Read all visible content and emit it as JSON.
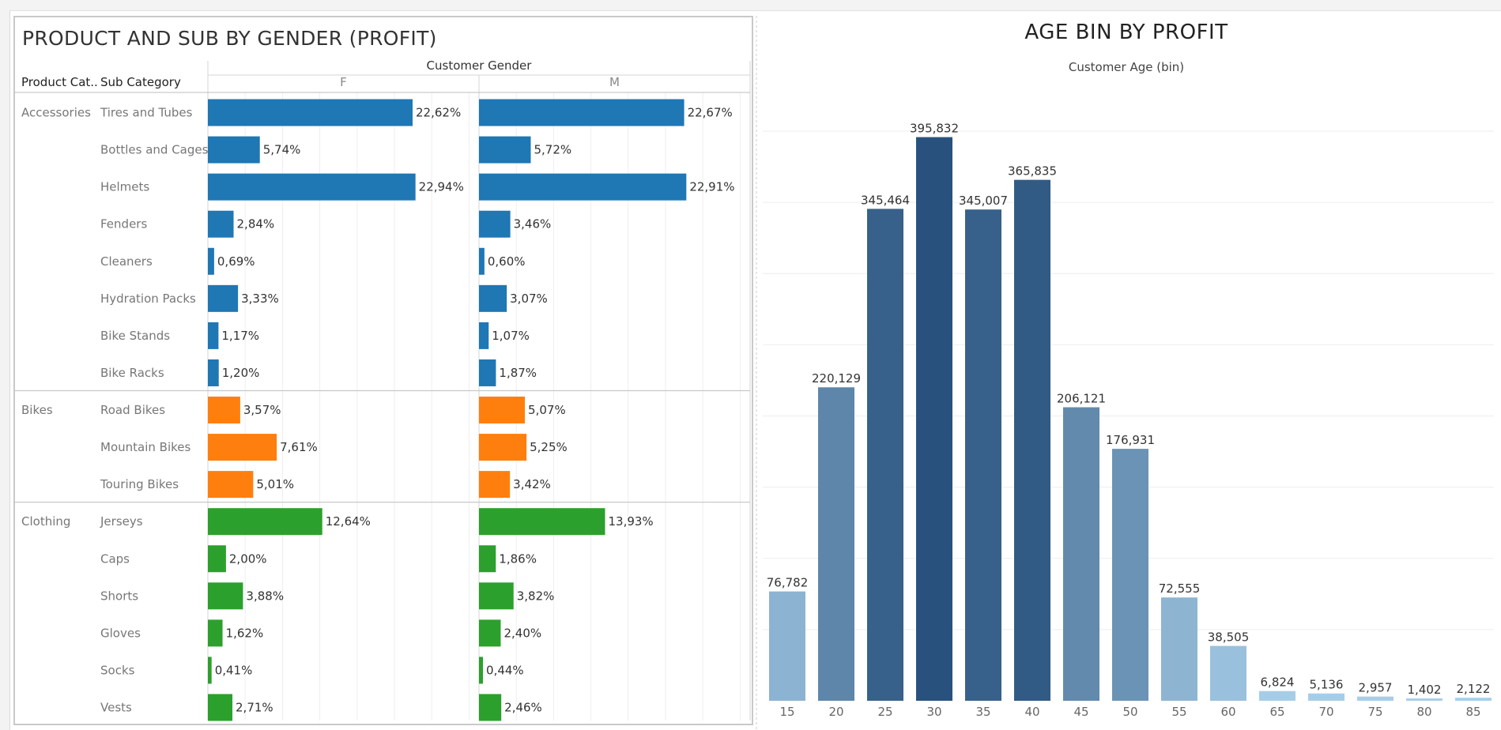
{
  "chart_data": [
    {
      "type": "bar",
      "title": "PRODUCT AND SUB BY GENDER (PROFIT)",
      "header": {
        "product_category": "Product Cat..",
        "sub_category": "Sub Category",
        "column_group": "Customer Gender"
      },
      "columns": [
        "F",
        "M"
      ],
      "value_format": "percent-comma",
      "xlim": [
        0,
        25
      ],
      "groups": [
        {
          "category": "Accessories",
          "color": "#1f77b4",
          "rows": [
            {
              "sub": "Tires and Tubes",
              "F": 22.62,
              "M": 22.67,
              "F_label": "22,62%",
              "M_label": "22,67%"
            },
            {
              "sub": "Bottles and Cages",
              "F": 5.74,
              "M": 5.72,
              "F_label": "5,74%",
              "M_label": "5,72%"
            },
            {
              "sub": "Helmets",
              "F": 22.94,
              "M": 22.91,
              "F_label": "22,94%",
              "M_label": "22,91%"
            },
            {
              "sub": "Fenders",
              "F": 2.84,
              "M": 3.46,
              "F_label": "2,84%",
              "M_label": "3,46%"
            },
            {
              "sub": "Cleaners",
              "F": 0.69,
              "M": 0.6,
              "F_label": "0,69%",
              "M_label": "0,60%"
            },
            {
              "sub": "Hydration Packs",
              "F": 3.33,
              "M": 3.07,
              "F_label": "3,33%",
              "M_label": "3,07%"
            },
            {
              "sub": "Bike Stands",
              "F": 1.17,
              "M": 1.07,
              "F_label": "1,17%",
              "M_label": "1,07%"
            },
            {
              "sub": "Bike Racks",
              "F": 1.2,
              "M": 1.87,
              "F_label": "1,20%",
              "M_label": "1,87%"
            }
          ]
        },
        {
          "category": "Bikes",
          "color": "#ff7f0e",
          "rows": [
            {
              "sub": "Road Bikes",
              "F": 3.57,
              "M": 5.07,
              "F_label": "3,57%",
              "M_label": "5,07%"
            },
            {
              "sub": "Mountain Bikes",
              "F": 7.61,
              "M": 5.25,
              "F_label": "7,61%",
              "M_label": "5,25%"
            },
            {
              "sub": "Touring Bikes",
              "F": 5.01,
              "M": 3.42,
              "F_label": "5,01%",
              "M_label": "3,42%"
            }
          ]
        },
        {
          "category": "Clothing",
          "color": "#2ca02c",
          "rows": [
            {
              "sub": "Jerseys",
              "F": 12.64,
              "M": 13.93,
              "F_label": "12,64%",
              "M_label": "13,93%"
            },
            {
              "sub": "Caps",
              "F": 2.0,
              "M": 1.86,
              "F_label": "2,00%",
              "M_label": "1,86%"
            },
            {
              "sub": "Shorts",
              "F": 3.88,
              "M": 3.82,
              "F_label": "3,88%",
              "M_label": "3,82%"
            },
            {
              "sub": "Gloves",
              "F": 1.62,
              "M": 2.4,
              "F_label": "1,62%",
              "M_label": "2,40%"
            },
            {
              "sub": "Socks",
              "F": 0.41,
              "M": 0.44,
              "F_label": "0,41%",
              "M_label": "0,44%"
            },
            {
              "sub": "Vests",
              "F": 2.71,
              "M": 2.46,
              "F_label": "2,71%",
              "M_label": "2,46%"
            }
          ]
        }
      ]
    },
    {
      "type": "bar",
      "title": "AGE BIN BY PROFIT",
      "xlabel": "Customer Age (bin)",
      "ylabel": "",
      "ylim": [
        0,
        420000
      ],
      "grid": true,
      "categories": [
        "15",
        "20",
        "25",
        "30",
        "35",
        "40",
        "45",
        "50",
        "55",
        "60",
        "65",
        "70",
        "75",
        "80",
        "85"
      ],
      "values": [
        76782,
        220129,
        345464,
        395832,
        345007,
        365835,
        206121,
        176931,
        72555,
        38505,
        6824,
        5136,
        2957,
        1402,
        2122
      ],
      "labels": [
        "76,782",
        "220,129",
        "345,464",
        "395,832",
        "345,007",
        "365,835",
        "206,121",
        "176,931",
        "72,555",
        "38,505",
        "6,824",
        "5,136",
        "2,957",
        "1,402",
        "2,122"
      ],
      "color_scale": {
        "low": "#a9d0ea",
        "high": "#28527d"
      }
    }
  ]
}
